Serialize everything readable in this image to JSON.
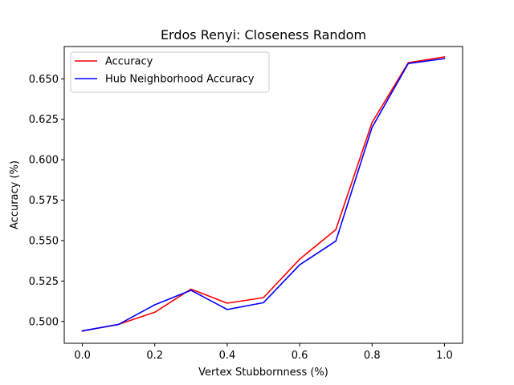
{
  "chart_data": {
    "type": "line",
    "title": "Erdos Renyi: Closeness Random",
    "xlabel": "Vertex Stubbornness (%)",
    "ylabel": "Accuracy (%)",
    "xlim": [
      -0.05,
      1.05
    ],
    "ylim": [
      0.4865,
      0.67
    ],
    "grid": false,
    "legend_position": "top-left",
    "x_ticks": [
      0.0,
      0.2,
      0.4,
      0.6,
      0.8,
      1.0
    ],
    "x_tick_labels": [
      "0.0",
      "0.2",
      "0.4",
      "0.6",
      "0.8",
      "1.0"
    ],
    "y_ticks": [
      0.5,
      0.525,
      0.55,
      0.575,
      0.6,
      0.625,
      0.65
    ],
    "y_tick_labels": [
      "0.500",
      "0.525",
      "0.550",
      "0.575",
      "0.600",
      "0.625",
      "0.650"
    ],
    "x": [
      0.0,
      0.1,
      0.2,
      0.3,
      0.4,
      0.5,
      0.6,
      0.7,
      0.8,
      0.9,
      1.0
    ],
    "series": [
      {
        "name": "Accuracy",
        "color": "#ff0000",
        "values": [
          0.494,
          0.4982,
          0.5057,
          0.52,
          0.5113,
          0.5147,
          0.5385,
          0.5568,
          0.623,
          0.66,
          0.6636
        ]
      },
      {
        "name": "Hub Neighborhood Accuracy",
        "color": "#0000ff",
        "values": [
          0.4942,
          0.4982,
          0.5103,
          0.5193,
          0.5074,
          0.5116,
          0.535,
          0.5497,
          0.62,
          0.6595,
          0.6625
        ]
      }
    ]
  }
}
